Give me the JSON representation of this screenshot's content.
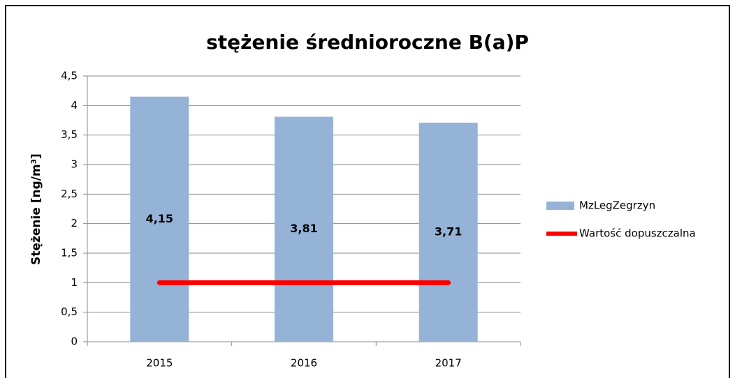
{
  "chart_data": {
    "type": "bar",
    "title": "stężenie średnioroczne B(a)P",
    "ylabel": "Stężenie [ng/m³]",
    "categories": [
      "2015",
      "2016",
      "2017"
    ],
    "series": [
      {
        "name": "MzLegZegrzyn",
        "type": "bar",
        "color": "#95b3d7",
        "values": [
          4.15,
          3.81,
          3.71
        ],
        "value_labels": [
          "4,15",
          "3,81",
          "3,71"
        ]
      },
      {
        "name": "Wartość dopuszczalna",
        "type": "line",
        "color": "#ff0000",
        "values": [
          1,
          1,
          1
        ]
      }
    ],
    "ylim": [
      0,
      4.5
    ],
    "yticks": [
      0,
      {
        "value": 0.5,
        "label": "0,5"
      },
      1,
      {
        "value": 1.5,
        "label": "1,5"
      },
      2,
      {
        "value": 2.5,
        "label": "2,5"
      },
      3,
      {
        "value": 3.5,
        "label": "3,5"
      },
      4,
      {
        "value": 4.5,
        "label": "4,5"
      }
    ],
    "grid": true,
    "legend": "right"
  }
}
